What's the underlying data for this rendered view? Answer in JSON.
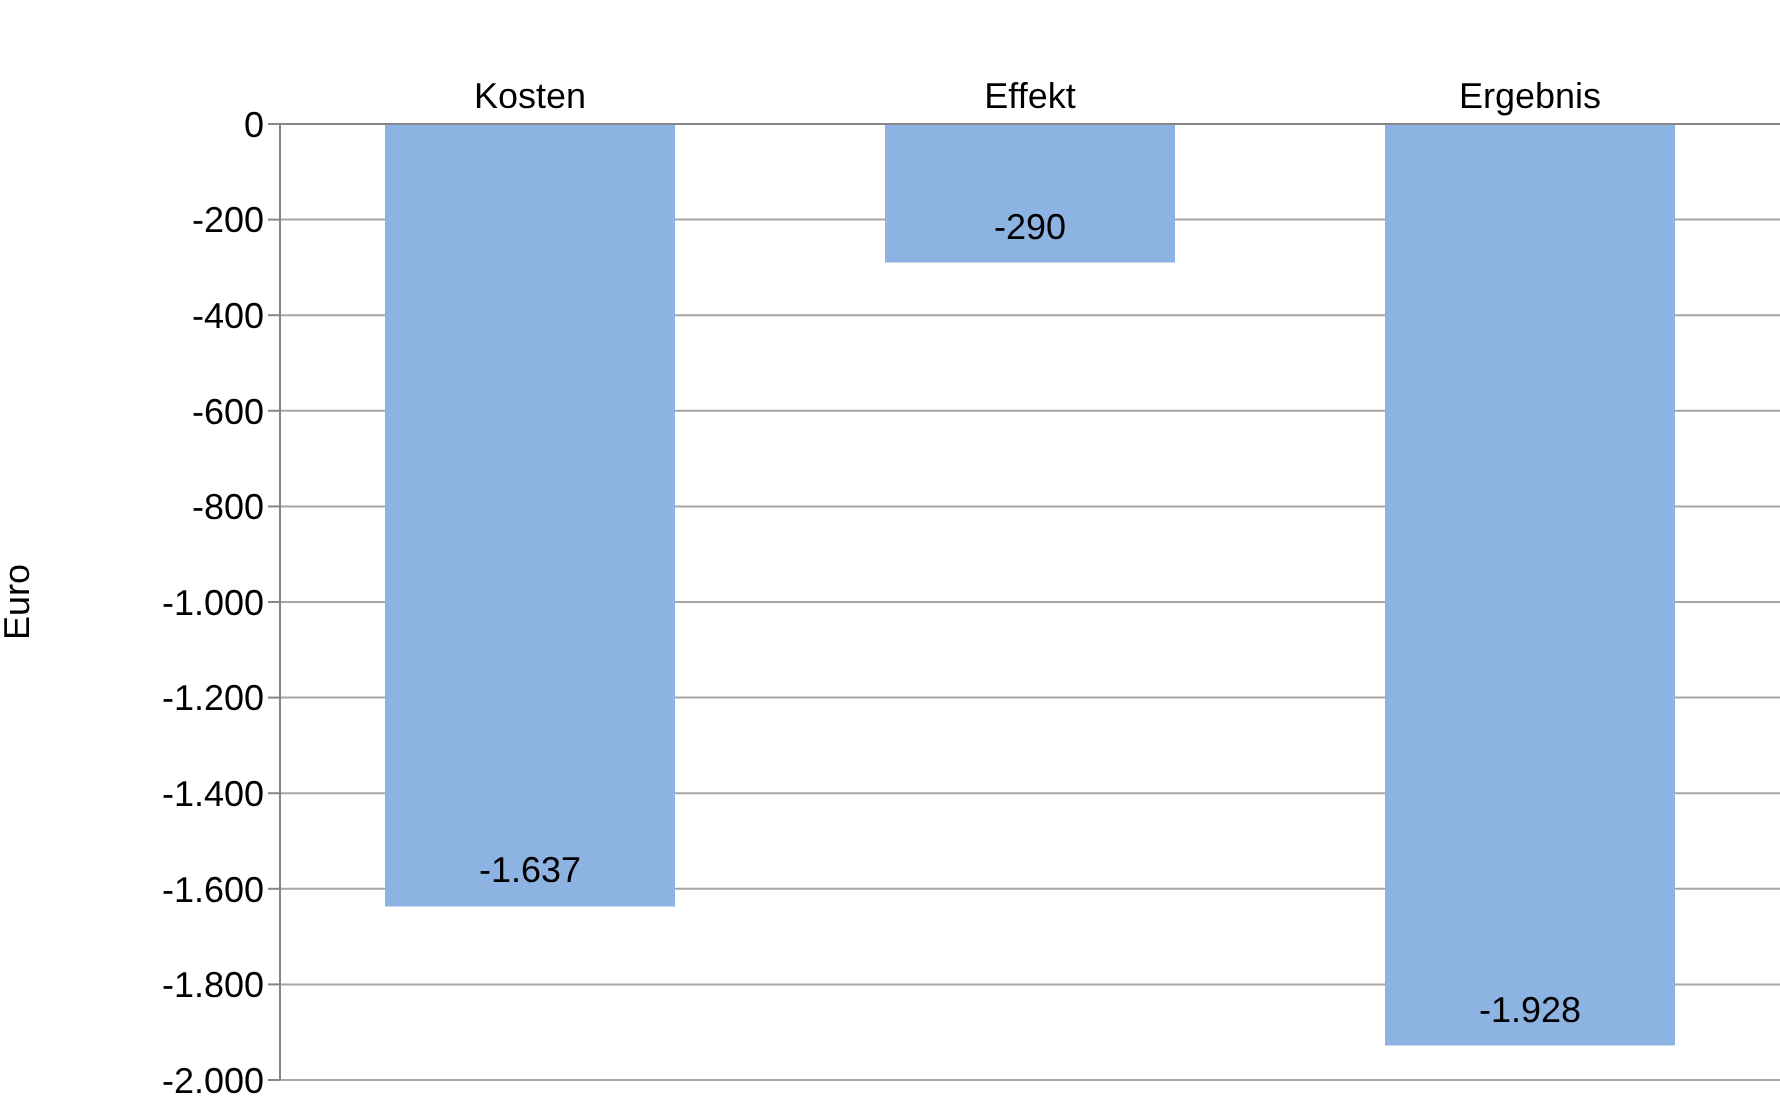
{
  "chart_data": {
    "type": "bar",
    "categories": [
      "Kosten",
      "Effekt",
      "Ergebnis"
    ],
    "values": [
      -1637,
      -290,
      -1928
    ],
    "value_labels": [
      "-1.637",
      "-290",
      "-1.928"
    ],
    "color": "#8db3e2",
    "ylabel": "Euro",
    "ylim": [
      -2000,
      0
    ],
    "yticks": [
      0,
      {
        "value": -200,
        "label": "-200"
      },
      {
        "value": -400,
        "label": "-400"
      },
      {
        "value": -600,
        "label": "-600"
      },
      {
        "value": -800,
        "label": "-800"
      },
      {
        "value": -1000,
        "label": "-1.000"
      },
      {
        "value": -1200,
        "label": "-1.200"
      },
      {
        "value": -1400,
        "label": "-1.400"
      },
      {
        "value": -1600,
        "label": "-1.600"
      },
      {
        "value": -1800,
        "label": "-1.800"
      },
      {
        "value": -2000,
        "label": "-2.000"
      }
    ],
    "grid": "y",
    "legend": false
  }
}
